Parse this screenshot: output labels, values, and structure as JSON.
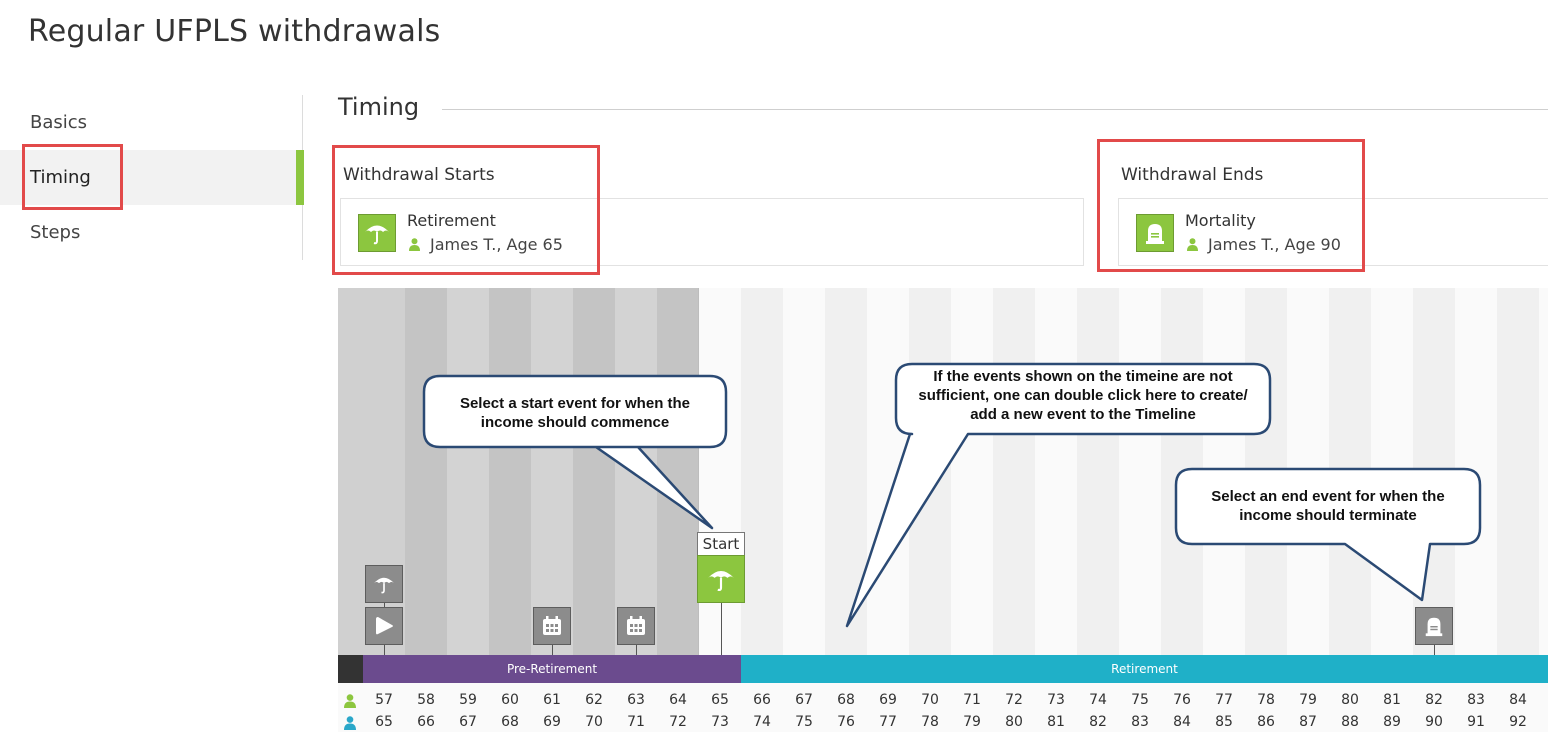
{
  "page": {
    "title": "Regular UFPLS withdrawals"
  },
  "nav": {
    "items": [
      {
        "label": "Basics"
      },
      {
        "label": "Timing"
      },
      {
        "label": "Steps"
      }
    ]
  },
  "timing": {
    "title": "Timing",
    "start": {
      "label": "Withdrawal Starts",
      "event": "Retirement",
      "person": "James T., Age 65"
    },
    "end": {
      "label": "Withdrawal Ends",
      "event": "Mortality",
      "person": "James T., Age 90"
    }
  },
  "timeline": {
    "start_label": "Start",
    "phases": [
      {
        "label": "Pre-Retirement"
      },
      {
        "label": "Retirement"
      }
    ],
    "ages_person1": [
      57,
      58,
      59,
      60,
      61,
      62,
      63,
      64,
      65,
      66,
      67,
      68,
      69,
      70,
      71,
      72,
      73,
      74,
      75,
      76,
      77,
      78,
      79,
      80,
      81,
      82,
      83,
      84
    ],
    "ages_person2": [
      65,
      66,
      67,
      68,
      69,
      70,
      71,
      72,
      73,
      74,
      75,
      76,
      77,
      78,
      79,
      80,
      81,
      82,
      83,
      84,
      85,
      86,
      87,
      88,
      89,
      90,
      91,
      92
    ],
    "colors": {
      "person1": "#8cc63f",
      "person2": "#2aa7c9",
      "pre_retirement": "#6b4b8e",
      "retirement": "#1fb0c8",
      "highlight": "#e24a4a"
    }
  },
  "callouts": {
    "start": "Select a start event for when the income should commence",
    "middle": "If the events shown on the timeine are not sufficient, one can double click here to create/ add a new event to the Timeline",
    "end": "Select an end event for when the income should terminate"
  },
  "icons": {
    "umbrella": "umbrella-icon",
    "play": "play-icon",
    "calendar": "calendar-icon",
    "tombstone": "tombstone-icon",
    "person": "person-icon"
  }
}
